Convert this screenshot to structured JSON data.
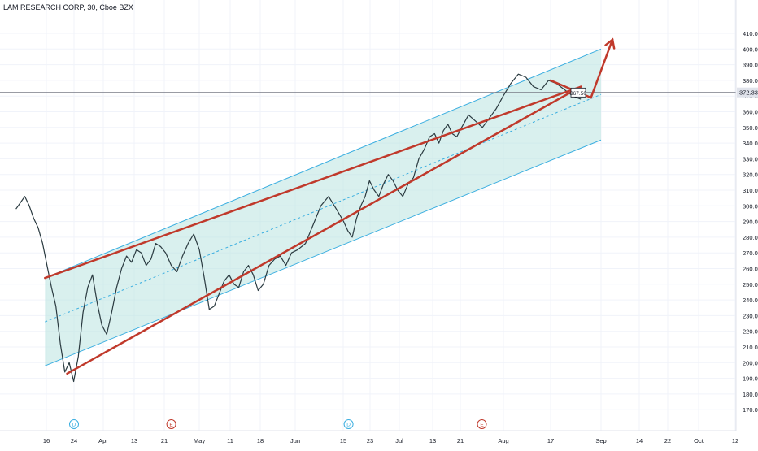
{
  "header": {
    "title": "LAM RESEARCH CORP, 30, Cboe BZX"
  },
  "colors": {
    "background": "#ffffff",
    "price_line": "#2a3a40",
    "channel_edge": "#3aaee0",
    "channel_fill": "#b9e3e0",
    "trendline": "#c0392b",
    "current_price_bg": "#e0e3eb"
  },
  "chart_data": {
    "type": "line",
    "title": "LAM RESEARCH CORP, 30, Cboe BZX",
    "ylim": [
      165,
      410
    ],
    "y_ticks": [
      170,
      180,
      190,
      200,
      210,
      220,
      230,
      240,
      250,
      260,
      270,
      280,
      290,
      300,
      310,
      320,
      330,
      340,
      350,
      360,
      370,
      380,
      390,
      400,
      410
    ],
    "x_ticks": [
      "16",
      "24",
      "Apr",
      "13",
      "21",
      "May",
      "11",
      "18",
      "Jun",
      "15",
      "23",
      "Jul",
      "13",
      "21",
      "Aug",
      "17",
      "Sep",
      "14",
      "22",
      "Oct",
      "12"
    ],
    "x_tick_index": [
      0,
      1,
      2,
      3,
      4,
      5,
      6,
      7,
      8,
      9,
      10,
      11,
      12,
      13,
      14,
      15,
      16,
      17,
      18,
      19,
      20
    ],
    "current_price": "372.33",
    "annotation_label": "367.50",
    "event_markers": [
      {
        "label": "D",
        "at_tick": 1.0,
        "color": "#3aaee0"
      },
      {
        "label": "E",
        "at_tick": 4.2,
        "color": "#c0392b"
      },
      {
        "label": "D",
        "at_tick": 9.2,
        "color": "#3aaee0"
      },
      {
        "label": "E",
        "at_tick": 13.5,
        "color": "#c0392b"
      }
    ],
    "series": [
      {
        "x_start_tick": -1.1,
        "x_end_tick": 15.6,
        "values": [
          298,
          302,
          306,
          300,
          292,
          286,
          276,
          262,
          248,
          236,
          212,
          194,
          200,
          188,
          204,
          232,
          248,
          256,
          238,
          224,
          218,
          232,
          248,
          260,
          268,
          264,
          272,
          270,
          262,
          266,
          276,
          274,
          270,
          262,
          258,
          268,
          276,
          282,
          272,
          254,
          234,
          236,
          244,
          252,
          256,
          250,
          248,
          258,
          262,
          256,
          246,
          250,
          262,
          266,
          268,
          262,
          270,
          272,
          276,
          288,
          300,
          306,
          298,
          290,
          284,
          280,
          292,
          300,
          306,
          316,
          310,
          306,
          314,
          320,
          316,
          310,
          306,
          314,
          318,
          330,
          336,
          344,
          346,
          340,
          348,
          352,
          346,
          344,
          350,
          358,
          354,
          350,
          356,
          362,
          370,
          378,
          384,
          382,
          376,
          374,
          380,
          378,
          374,
          370,
          368
        ]
      }
    ],
    "channel": {
      "upper": [
        [
          -0.05,
          254
        ],
        [
          16.0,
          400
        ]
      ],
      "lower": [
        [
          -0.05,
          198
        ],
        [
          16.0,
          342
        ]
      ],
      "median": [
        [
          -0.05,
          226
        ],
        [
          16.0,
          371
        ]
      ]
    },
    "trendlines": [
      {
        "from": [
          -0.05,
          254
        ],
        "to": [
          15.6,
          376
        ]
      },
      {
        "from": [
          0.75,
          193
        ],
        "to": [
          15.6,
          376
        ]
      },
      {
        "from": [
          15.0,
          380
        ],
        "to": [
          15.8,
          369
        ]
      },
      {
        "from": [
          15.8,
          369
        ],
        "to": [
          16.3,
          406
        ]
      }
    ]
  }
}
